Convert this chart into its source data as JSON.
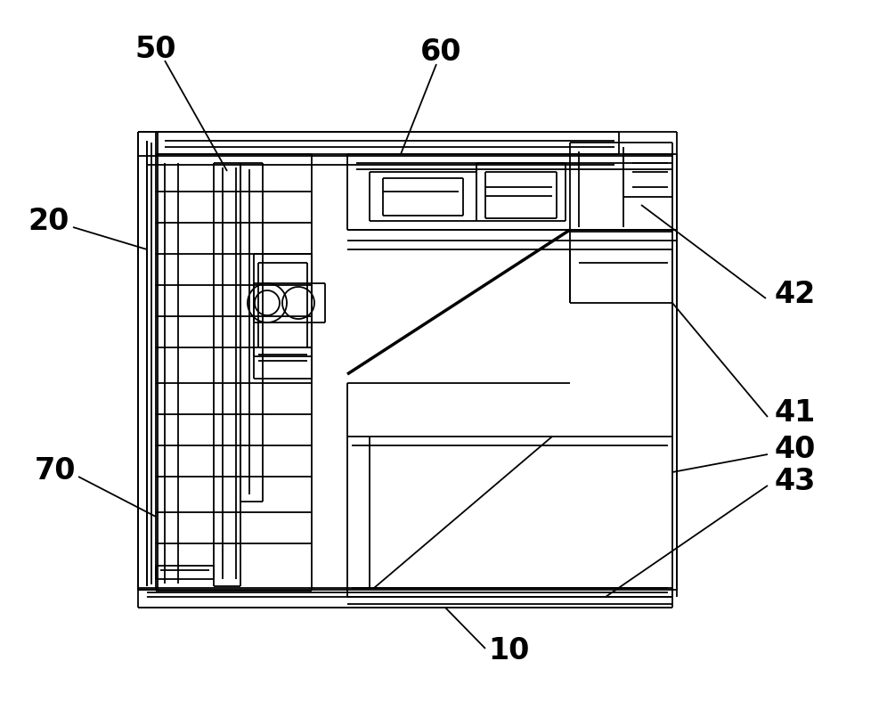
{
  "bg_color": "#ffffff",
  "line_color": "#000000",
  "lw": 1.3,
  "lw_thick": 2.5,
  "fig_width": 9.96,
  "fig_height": 7.88
}
